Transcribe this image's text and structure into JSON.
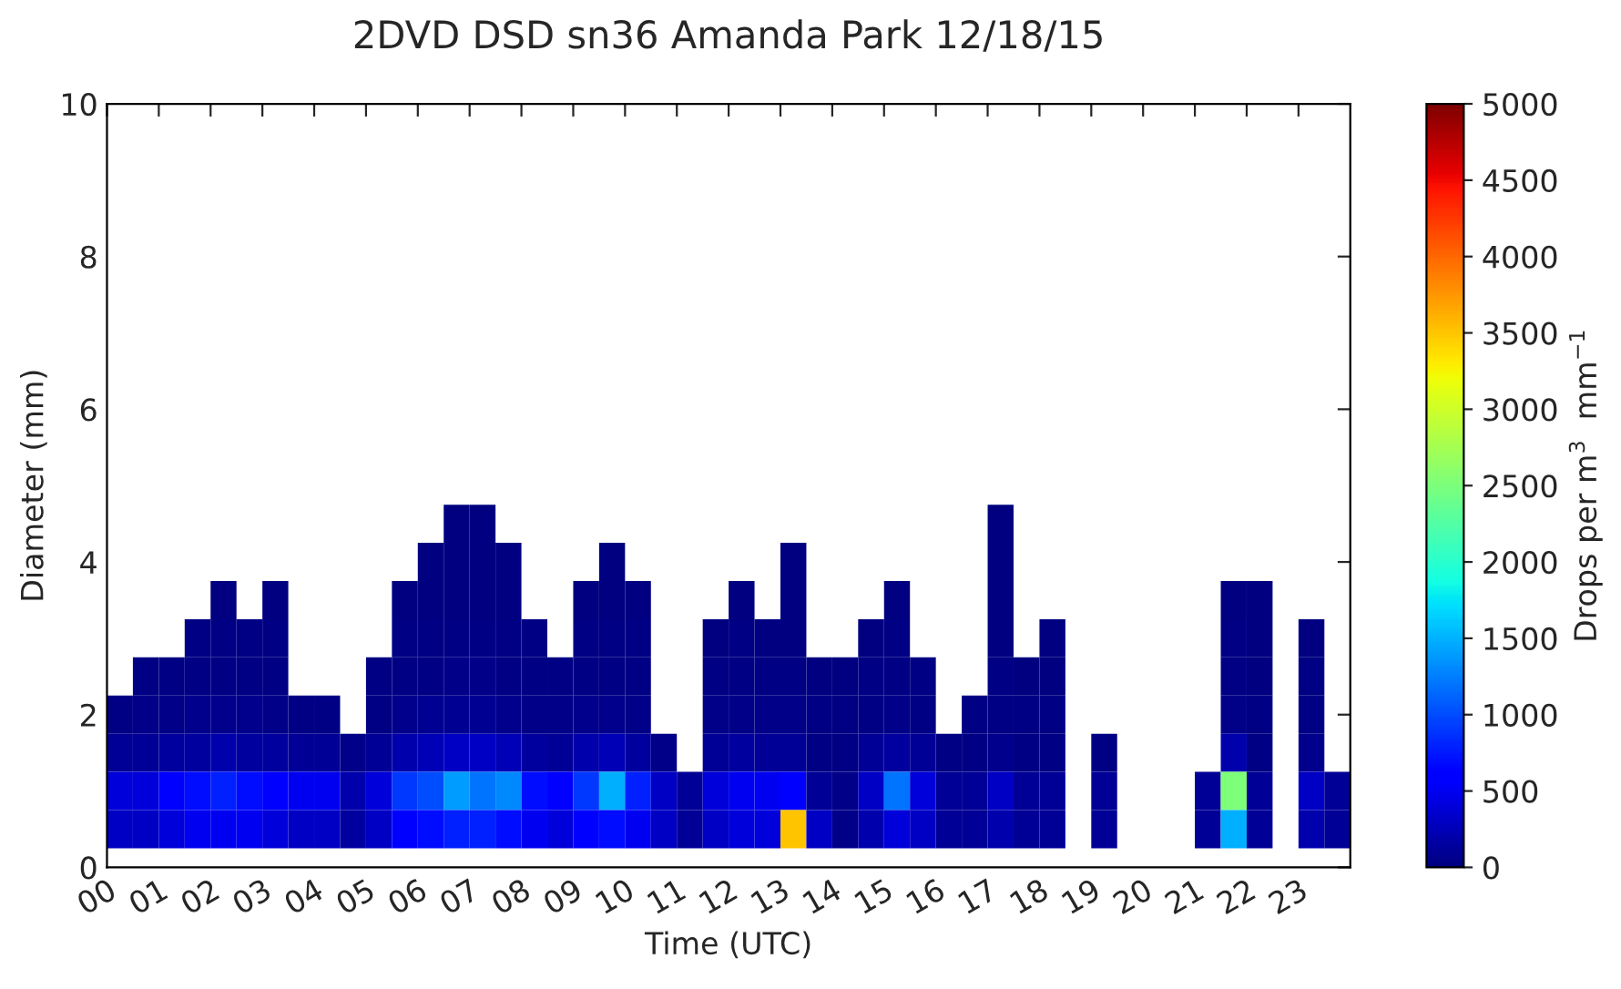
{
  "chart_data": {
    "type": "heatmap",
    "title": "2DVD DSD sn36 Amanda Park 12/18/15",
    "xlabel": "Time (UTC)",
    "ylabel": "Diameter (mm)",
    "clabel": "Drops per m$^{3}$  mm$^{−1}$",
    "x": [
      0.25,
      0.75,
      1.25,
      1.75,
      2.25,
      2.75,
      3.25,
      3.75,
      4.25,
      4.75,
      5.25,
      5.75,
      6.25,
      6.75,
      7.25,
      7.75,
      8.25,
      8.75,
      9.25,
      9.75,
      10.25,
      10.75,
      11.25,
      11.75,
      12.25,
      12.75,
      13.25,
      13.75,
      14.25,
      14.75,
      15.25,
      15.75,
      16.25,
      16.75,
      17.25,
      17.75,
      18.25,
      18.75,
      19.25,
      19.75,
      20.25,
      20.75,
      21.25,
      21.75,
      22.25,
      22.75,
      23.25,
      23.75
    ],
    "y": [
      4.5,
      4.0,
      3.5,
      3.0,
      2.5,
      2.0,
      1.5,
      1.0,
      0.5
    ],
    "cells": [
      [
        null,
        null,
        null,
        null,
        null,
        null,
        null,
        null,
        null,
        null,
        null,
        null,
        null,
        10,
        10,
        null,
        null,
        null,
        null,
        null,
        null,
        null,
        null,
        null,
        null,
        null,
        null,
        null,
        null,
        null,
        null,
        null,
        null,
        null,
        10,
        null,
        null,
        null,
        null,
        null,
        null,
        null,
        null,
        null,
        null,
        null,
        null,
        null
      ],
      [
        null,
        null,
        null,
        null,
        null,
        null,
        null,
        null,
        null,
        null,
        null,
        null,
        10,
        10,
        10,
        10,
        null,
        null,
        null,
        10,
        null,
        null,
        null,
        null,
        null,
        null,
        10,
        null,
        null,
        null,
        null,
        null,
        null,
        null,
        10,
        null,
        null,
        null,
        null,
        null,
        null,
        null,
        null,
        null,
        null,
        null,
        null,
        null
      ],
      [
        null,
        null,
        null,
        null,
        10,
        null,
        10,
        null,
        null,
        null,
        null,
        10,
        10,
        10,
        10,
        10,
        null,
        null,
        10,
        10,
        10,
        null,
        null,
        null,
        10,
        null,
        10,
        null,
        null,
        null,
        10,
        null,
        null,
        null,
        10,
        null,
        null,
        null,
        null,
        null,
        null,
        null,
        null,
        10,
        10,
        null,
        null,
        null
      ],
      [
        null,
        null,
        null,
        20,
        20,
        20,
        20,
        null,
        null,
        null,
        null,
        20,
        20,
        20,
        20,
        20,
        20,
        null,
        20,
        20,
        20,
        null,
        null,
        10,
        20,
        10,
        10,
        null,
        null,
        10,
        20,
        null,
        null,
        null,
        10,
        null,
        10,
        null,
        null,
        null,
        null,
        null,
        null,
        20,
        10,
        null,
        10,
        null
      ],
      [
        null,
        20,
        20,
        30,
        30,
        30,
        30,
        null,
        null,
        null,
        20,
        30,
        30,
        40,
        40,
        30,
        30,
        20,
        30,
        30,
        30,
        null,
        null,
        20,
        30,
        20,
        20,
        10,
        10,
        20,
        30,
        20,
        null,
        null,
        20,
        10,
        10,
        null,
        null,
        null,
        null,
        null,
        null,
        30,
        10,
        null,
        20,
        null
      ],
      [
        30,
        40,
        50,
        60,
        60,
        60,
        50,
        30,
        30,
        null,
        30,
        60,
        80,
        80,
        80,
        70,
        50,
        40,
        60,
        70,
        50,
        null,
        null,
        40,
        50,
        40,
        40,
        20,
        20,
        30,
        50,
        30,
        null,
        20,
        30,
        20,
        20,
        null,
        null,
        null,
        null,
        null,
        null,
        50,
        20,
        null,
        30,
        null
      ],
      [
        100,
        100,
        150,
        150,
        200,
        150,
        150,
        100,
        100,
        50,
        100,
        200,
        250,
        300,
        300,
        250,
        150,
        100,
        200,
        250,
        150,
        50,
        null,
        100,
        150,
        100,
        100,
        30,
        20,
        100,
        150,
        100,
        30,
        30,
        60,
        30,
        30,
        null,
        20,
        null,
        null,
        null,
        null,
        200,
        30,
        null,
        60,
        null
      ],
      [
        400,
        400,
        600,
        700,
        800,
        700,
        600,
        500,
        500,
        200,
        400,
        900,
        1000,
        1400,
        1200,
        1300,
        700,
        600,
        900,
        1500,
        800,
        300,
        100,
        400,
        500,
        500,
        600,
        100,
        50,
        300,
        1200,
        400,
        100,
        100,
        300,
        100,
        100,
        null,
        100,
        null,
        null,
        null,
        100,
        2500,
        100,
        null,
        300,
        100
      ],
      [
        300,
        300,
        400,
        500,
        500,
        500,
        400,
        300,
        300,
        150,
        300,
        600,
        700,
        800,
        800,
        700,
        500,
        400,
        600,
        700,
        500,
        300,
        100,
        300,
        400,
        400,
        3500,
        300,
        50,
        200,
        400,
        300,
        100,
        100,
        200,
        100,
        100,
        null,
        100,
        null,
        null,
        null,
        100,
        1500,
        100,
        null,
        200,
        100
      ]
    ],
    "xlim": [
      0,
      24
    ],
    "xticks": [
      {
        "value": 0,
        "label": "00"
      },
      {
        "value": 1,
        "label": "01"
      },
      {
        "value": 2,
        "label": "02"
      },
      {
        "value": 3,
        "label": "03"
      },
      {
        "value": 4,
        "label": "04"
      },
      {
        "value": 5,
        "label": "05"
      },
      {
        "value": 6,
        "label": "06"
      },
      {
        "value": 7,
        "label": "07"
      },
      {
        "value": 8,
        "label": "08"
      },
      {
        "value": 9,
        "label": "09"
      },
      {
        "value": 10,
        "label": "10"
      },
      {
        "value": 11,
        "label": "11"
      },
      {
        "value": 12,
        "label": "12"
      },
      {
        "value": 13,
        "label": "13"
      },
      {
        "value": 14,
        "label": "14"
      },
      {
        "value": 15,
        "label": "15"
      },
      {
        "value": 16,
        "label": "16"
      },
      {
        "value": 17,
        "label": "17"
      },
      {
        "value": 18,
        "label": "18"
      },
      {
        "value": 19,
        "label": "19"
      },
      {
        "value": 20,
        "label": "20"
      },
      {
        "value": 21,
        "label": "21"
      },
      {
        "value": 22,
        "label": "22"
      },
      {
        "value": 23,
        "label": "23"
      }
    ],
    "ylim": [
      0,
      10
    ],
    "yticks": [
      0,
      2,
      4,
      6,
      8,
      10
    ],
    "clim": [
      0,
      5000
    ],
    "cticks": [
      0,
      500,
      1000,
      1500,
      2000,
      2500,
      3000,
      3500,
      4000,
      4500,
      5000
    ]
  }
}
